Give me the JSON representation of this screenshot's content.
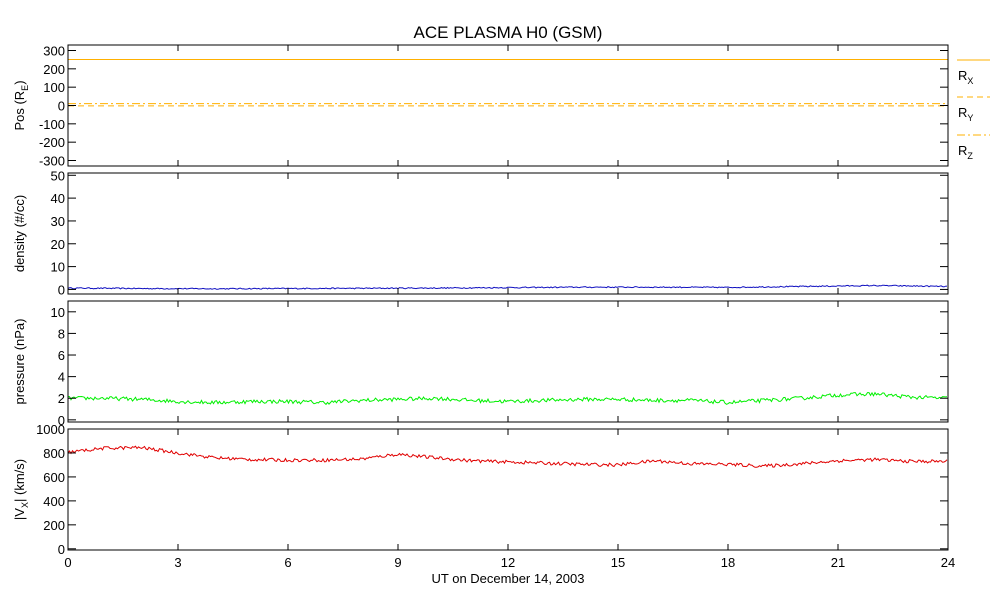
{
  "chart_data": [
    {
      "type": "line",
      "title": "ACE PLASMA H0 (GSM)",
      "ylabel": "Pos (R",
      "ylabel_sub": "E",
      "ylabel_end": ")",
      "ylim": [
        -330,
        330
      ],
      "yticks": [
        300,
        200,
        100,
        0,
        -100,
        -200,
        -300
      ],
      "yticklabels": [
        "300",
        "200",
        "100",
        "0",
        "-100",
        "-200",
        "-300"
      ],
      "xlim": [
        0,
        24
      ],
      "series": [
        {
          "name": "R",
          "sub": "X",
          "color": "#ffb000",
          "style": "solid",
          "x": [
            0,
            24
          ],
          "y": [
            251,
            251
          ]
        },
        {
          "name": "R",
          "sub": "Y",
          "color": "#ffb000",
          "style": "dashed",
          "x": [
            0,
            24
          ],
          "y": [
            -2,
            -2
          ]
        },
        {
          "name": "R",
          "sub": "Z",
          "color": "#ffb000",
          "style": "dashdot",
          "x": [
            0,
            24
          ],
          "y": [
            10,
            10
          ]
        }
      ]
    },
    {
      "type": "line",
      "ylabel": "density (#/cc)",
      "ylim": [
        -2,
        51
      ],
      "yticks": [
        50,
        40,
        30,
        20,
        10,
        0
      ],
      "yticklabels": [
        "50",
        "40",
        "30",
        "20",
        "10",
        "0"
      ],
      "xlim": [
        0,
        24
      ],
      "series": [
        {
          "color": "#1010c0",
          "x": [
            0,
            2,
            4,
            6,
            8,
            10,
            12,
            14,
            16,
            18,
            20,
            22,
            24
          ],
          "y": [
            0.6,
            0.4,
            0.3,
            0.4,
            0.5,
            0.6,
            0.8,
            1.0,
            1.0,
            0.9,
            1.3,
            1.7,
            1.3
          ]
        }
      ]
    },
    {
      "type": "line",
      "ylabel": "pressure (nPa)",
      "ylim": [
        -0.2,
        11
      ],
      "yticks": [
        10,
        8,
        6,
        4,
        2,
        0
      ],
      "yticklabels": [
        "10",
        "8",
        "6",
        "4",
        "2",
        "0"
      ],
      "xlim": [
        0,
        24
      ],
      "series": [
        {
          "color": "#00f000",
          "x": [
            0,
            1,
            2,
            3,
            4,
            5,
            6,
            7,
            8,
            9,
            10,
            11,
            12,
            13,
            14,
            15,
            16,
            17,
            18,
            19,
            20,
            21,
            22,
            23,
            24
          ],
          "y": [
            2.0,
            2.0,
            1.9,
            1.7,
            1.6,
            1.7,
            1.7,
            1.6,
            1.8,
            1.9,
            2.0,
            1.8,
            1.7,
            1.8,
            1.9,
            1.9,
            1.8,
            1.8,
            1.6,
            1.8,
            2.0,
            2.3,
            2.4,
            2.1,
            2.0
          ]
        }
      ]
    },
    {
      "type": "line",
      "ylabel": "|V",
      "ylabel_sub": "X",
      "ylabel_end": "| (km/s)",
      "ylim": [
        -10,
        1000
      ],
      "yticks": [
        1000,
        800,
        600,
        400,
        200,
        0
      ],
      "yticklabels": [
        "1000",
        "800",
        "600",
        "400",
        "200",
        "0"
      ],
      "xlim": [
        0,
        24
      ],
      "xlabel": "UT on December 14, 2003",
      "xticks": [
        0,
        3,
        6,
        9,
        12,
        15,
        18,
        21,
        24
      ],
      "xticklabels": [
        "0",
        "3",
        "6",
        "9",
        "12",
        "15",
        "18",
        "21",
        "24"
      ],
      "series": [
        {
          "color": "#e00000",
          "x": [
            0,
            1,
            2,
            3,
            4,
            5,
            6,
            7,
            8,
            9,
            10,
            11,
            12,
            13,
            14,
            15,
            16,
            17,
            18,
            19,
            20,
            21,
            22,
            23,
            24
          ],
          "y": [
            805,
            840,
            845,
            800,
            760,
            745,
            740,
            740,
            750,
            790,
            760,
            735,
            725,
            715,
            705,
            700,
            735,
            710,
            705,
            690,
            710,
            735,
            745,
            730,
            730
          ]
        }
      ]
    }
  ]
}
